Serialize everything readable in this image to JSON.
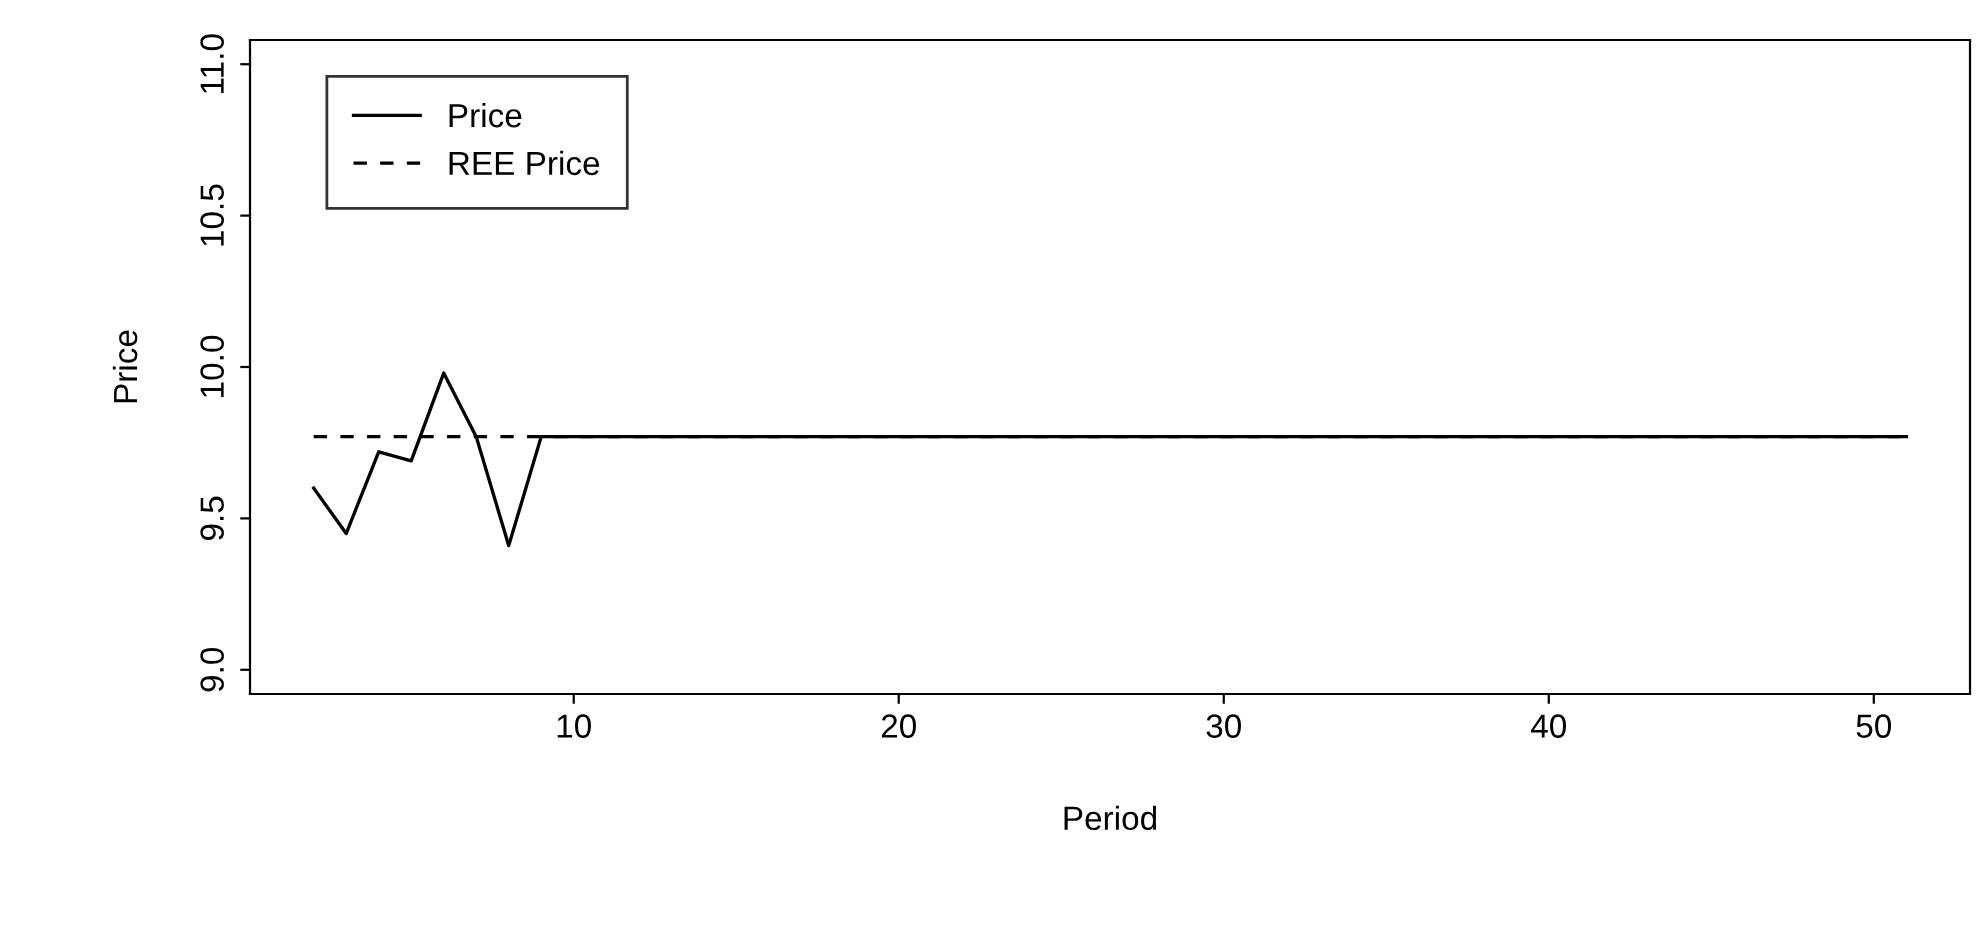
{
  "chart_data": {
    "type": "line",
    "xlabel": "Period",
    "ylabel": "Price",
    "xlim": [
      0.04,
      52.96
    ],
    "xticks": [
      10,
      20,
      30,
      40,
      50
    ],
    "ylim": [
      8.92,
      11.08
    ],
    "yticks": [
      {
        "value": 9,
        "label": "9.0"
      },
      9.5,
      {
        "value": 10,
        "label": "10.0"
      },
      10.5,
      {
        "value": 11,
        "label": "11.0"
      }
    ],
    "grid": false,
    "legend": "top left",
    "marker": "none",
    "series": [
      {
        "name": "Price",
        "color": "#000000",
        "line_style": "solid",
        "x": [
          2,
          3,
          4,
          5,
          6,
          7,
          8,
          9,
          10,
          11,
          12,
          13,
          14,
          15,
          16,
          17,
          18,
          19,
          20,
          21,
          22,
          23,
          24,
          25,
          26,
          27,
          28,
          29,
          30,
          31,
          32,
          33,
          34,
          35,
          36,
          37,
          38,
          39,
          40,
          41,
          42,
          43,
          44,
          45,
          46,
          47,
          48,
          49,
          50,
          51
        ],
        "values": [
          9.6,
          9.45,
          9.72,
          9.69,
          9.98,
          9.77,
          9.41,
          9.77,
          9.77,
          9.77,
          9.77,
          9.77,
          9.77,
          9.77,
          9.77,
          9.77,
          9.77,
          9.77,
          9.77,
          9.77,
          9.77,
          9.77,
          9.77,
          9.77,
          9.77,
          9.77,
          9.77,
          9.77,
          9.77,
          9.77,
          9.77,
          9.77,
          9.77,
          9.77,
          9.77,
          9.77,
          9.77,
          9.77,
          9.77,
          9.77,
          9.77,
          9.77,
          9.77,
          9.77,
          9.77,
          9.77,
          9.77,
          9.77,
          9.77,
          9.77
        ]
      },
      {
        "name": "REE Price",
        "color": "#000000",
        "line_style": "dashed",
        "x": [
          2,
          51
        ],
        "values": [
          9.77,
          9.77
        ]
      }
    ]
  }
}
